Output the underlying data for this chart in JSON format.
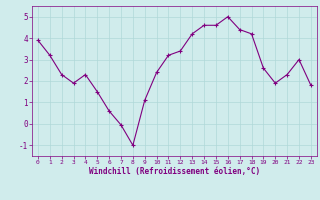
{
  "x": [
    0,
    1,
    2,
    3,
    4,
    5,
    6,
    7,
    8,
    9,
    10,
    11,
    12,
    13,
    14,
    15,
    16,
    17,
    18,
    19,
    20,
    21,
    22,
    23
  ],
  "y": [
    3.9,
    3.2,
    2.3,
    1.9,
    2.3,
    1.5,
    0.6,
    -0.05,
    -1.0,
    1.1,
    2.4,
    3.2,
    3.4,
    4.2,
    4.6,
    4.6,
    5.0,
    4.4,
    4.2,
    2.6,
    1.9,
    2.3,
    3.0,
    1.8
  ],
  "line_color": "#800080",
  "marker_color": "#800080",
  "bg_color": "#d0ecec",
  "grid_color": "#b0d8d8",
  "xlabel": "Windchill (Refroidissement éolien,°C)",
  "xlabel_color": "#800080",
  "tick_color": "#800080",
  "ylim": [
    -1.5,
    5.5
  ],
  "xlim": [
    -0.5,
    23.5
  ],
  "yticks": [
    -1,
    0,
    1,
    2,
    3,
    4,
    5
  ],
  "xticks": [
    0,
    1,
    2,
    3,
    4,
    5,
    6,
    7,
    8,
    9,
    10,
    11,
    12,
    13,
    14,
    15,
    16,
    17,
    18,
    19,
    20,
    21,
    22,
    23
  ]
}
